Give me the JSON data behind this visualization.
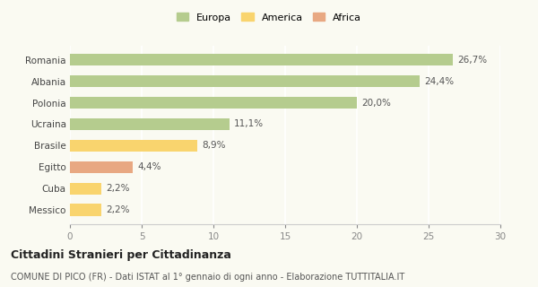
{
  "categories": [
    "Messico",
    "Cuba",
    "Egitto",
    "Brasile",
    "Ucraina",
    "Polonia",
    "Albania",
    "Romania"
  ],
  "values": [
    2.2,
    2.2,
    4.4,
    8.9,
    11.1,
    20.0,
    24.4,
    26.7
  ],
  "labels": [
    "2,2%",
    "2,2%",
    "4,4%",
    "8,9%",
    "11,1%",
    "20,0%",
    "24,4%",
    "26,7%"
  ],
  "colors": [
    "#f9d46e",
    "#f9d46e",
    "#e8a882",
    "#f9d46e",
    "#b5cc8e",
    "#b5cc8e",
    "#b5cc8e",
    "#b5cc8e"
  ],
  "legend_labels": [
    "Europa",
    "America",
    "Africa"
  ],
  "legend_colors": [
    "#b5cc8e",
    "#f9d46e",
    "#e8a882"
  ],
  "title": "Cittadini Stranieri per Cittadinanza",
  "subtitle": "COMUNE DI PICO (FR) - Dati ISTAT al 1° gennaio di ogni anno - Elaborazione TUTTITALIA.IT",
  "xlim": [
    0,
    30
  ],
  "xticks": [
    0,
    5,
    10,
    15,
    20,
    25,
    30
  ],
  "background_color": "#fafaf2",
  "bar_height": 0.55,
  "title_fontsize": 9,
  "subtitle_fontsize": 7,
  "label_fontsize": 7.5,
  "tick_fontsize": 7.5,
  "legend_fontsize": 8
}
